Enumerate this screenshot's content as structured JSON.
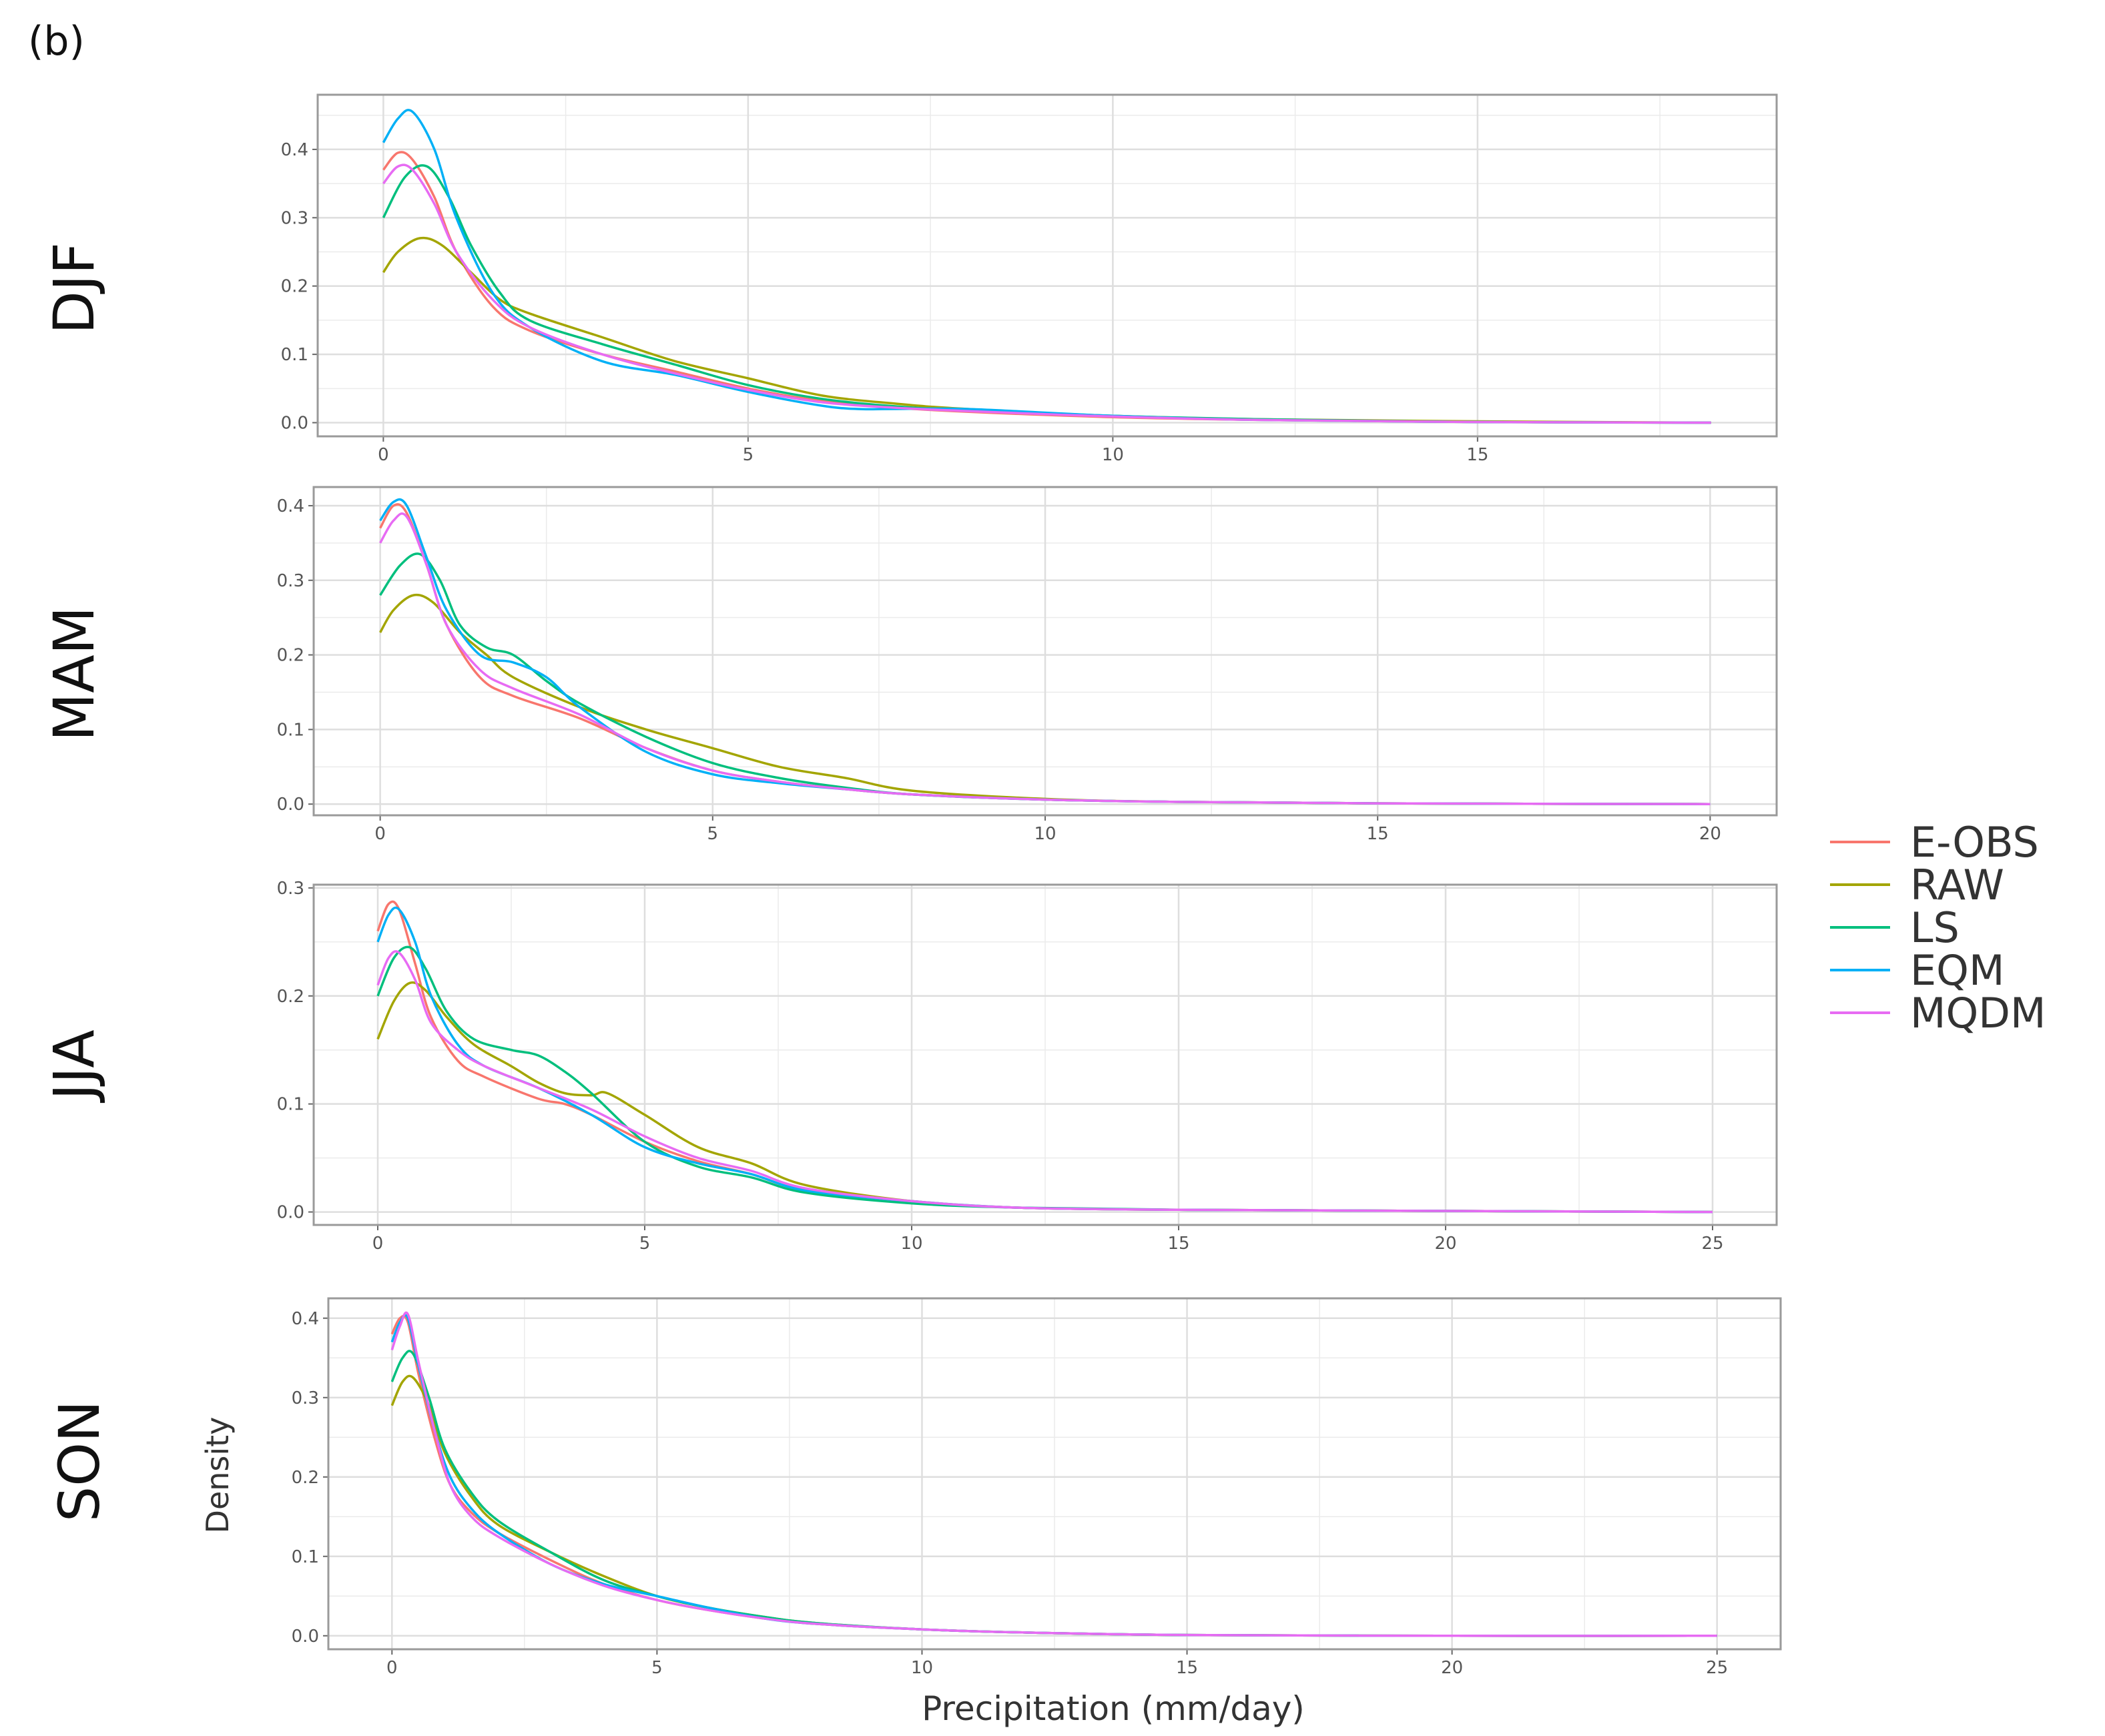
{
  "figure_label": "(b)",
  "colors": {
    "E-OBS": "#F8766D",
    "RAW": "#A3A500",
    "LS": "#00BF7D",
    "EQM": "#00B0F6",
    "MQDM": "#E76BF3",
    "grid": "#ebebeb",
    "frame": "#9a9a9a"
  },
  "legend": {
    "placement": "right",
    "items": [
      "E-OBS",
      "RAW",
      "LS",
      "EQM",
      "MQDM"
    ]
  },
  "chart_data": [
    {
      "type": "line",
      "panel": "DJF",
      "xlabel": "",
      "ylabel": "",
      "xlim": [
        -0.9,
        19.1
      ],
      "ylim": [
        -0.02,
        0.48
      ],
      "xticks": [
        0,
        5,
        10,
        15
      ],
      "yticks": [
        0.0,
        0.1,
        0.2,
        0.3,
        0.4
      ],
      "grid": true,
      "series": [
        {
          "name": "E-OBS",
          "x": [
            0,
            0.2,
            0.4,
            0.7,
            1,
            1.5,
            2,
            3,
            4,
            5,
            6,
            7,
            8,
            10,
            12,
            15,
            18.2
          ],
          "y": [
            0.37,
            0.395,
            0.385,
            0.33,
            0.25,
            0.17,
            0.135,
            0.1,
            0.075,
            0.05,
            0.032,
            0.022,
            0.016,
            0.008,
            0.004,
            0.001,
            0.0
          ]
        },
        {
          "name": "RAW",
          "x": [
            0,
            0.2,
            0.5,
            0.8,
            1.2,
            1.6,
            2,
            3,
            4,
            5,
            6,
            7,
            8,
            10,
            12,
            15,
            18.2
          ],
          "y": [
            0.22,
            0.25,
            0.27,
            0.26,
            0.22,
            0.18,
            0.16,
            0.125,
            0.09,
            0.065,
            0.04,
            0.028,
            0.02,
            0.01,
            0.005,
            0.002,
            0.0
          ]
        },
        {
          "name": "LS",
          "x": [
            0,
            0.3,
            0.6,
            0.9,
            1.2,
            1.6,
            2,
            3,
            4,
            5,
            6,
            7,
            8,
            10,
            12,
            15,
            18.2
          ],
          "y": [
            0.3,
            0.36,
            0.375,
            0.33,
            0.26,
            0.19,
            0.15,
            0.115,
            0.085,
            0.055,
            0.035,
            0.024,
            0.018,
            0.01,
            0.005,
            0.001,
            0.0
          ]
        },
        {
          "name": "EQM",
          "x": [
            0,
            0.2,
            0.4,
            0.7,
            1,
            1.5,
            2,
            3,
            4,
            5,
            6,
            6.5,
            7,
            8,
            10,
            12,
            15,
            18.2
          ],
          "y": [
            0.41,
            0.445,
            0.455,
            0.4,
            0.3,
            0.19,
            0.14,
            0.09,
            0.07,
            0.045,
            0.025,
            0.02,
            0.02,
            0.02,
            0.01,
            0.004,
            0.001,
            0.0
          ]
        },
        {
          "name": "MQDM",
          "x": [
            0,
            0.2,
            0.4,
            0.7,
            1,
            1.5,
            2,
            3,
            4,
            5,
            6,
            7,
            8,
            10,
            12,
            15,
            18.2
          ],
          "y": [
            0.35,
            0.375,
            0.37,
            0.32,
            0.25,
            0.18,
            0.14,
            0.1,
            0.072,
            0.048,
            0.03,
            0.022,
            0.017,
            0.009,
            0.004,
            0.001,
            0.0
          ]
        }
      ]
    },
    {
      "type": "line",
      "panel": "MAM",
      "xlabel": "",
      "ylabel": "",
      "xlim": [
        -1,
        21
      ],
      "ylim": [
        -0.015,
        0.425
      ],
      "xticks": [
        0,
        5,
        10,
        15,
        20
      ],
      "yticks": [
        0.0,
        0.1,
        0.2,
        0.3,
        0.4
      ],
      "grid": true,
      "series": [
        {
          "name": "E-OBS",
          "x": [
            0,
            0.2,
            0.4,
            0.7,
            1,
            1.5,
            2,
            3,
            4,
            5,
            6,
            7,
            8,
            10,
            12,
            15,
            20
          ],
          "y": [
            0.37,
            0.4,
            0.39,
            0.32,
            0.24,
            0.17,
            0.145,
            0.115,
            0.075,
            0.045,
            0.03,
            0.02,
            0.013,
            0.006,
            0.003,
            0.001,
            0.0
          ]
        },
        {
          "name": "RAW",
          "x": [
            0,
            0.2,
            0.5,
            0.8,
            1.2,
            1.6,
            2,
            3,
            4,
            5,
            6,
            7,
            8,
            10,
            12,
            15,
            20
          ],
          "y": [
            0.23,
            0.26,
            0.28,
            0.27,
            0.23,
            0.2,
            0.17,
            0.13,
            0.1,
            0.075,
            0.05,
            0.035,
            0.018,
            0.007,
            0.003,
            0.001,
            0.0
          ]
        },
        {
          "name": "LS",
          "x": [
            0,
            0.3,
            0.6,
            0.9,
            1.2,
            1.6,
            2,
            2.5,
            3,
            4,
            5,
            6,
            7,
            8,
            10,
            12,
            15,
            20
          ],
          "y": [
            0.28,
            0.32,
            0.335,
            0.3,
            0.24,
            0.21,
            0.2,
            0.165,
            0.135,
            0.09,
            0.055,
            0.035,
            0.022,
            0.013,
            0.006,
            0.003,
            0.001,
            0.0
          ]
        },
        {
          "name": "EQM",
          "x": [
            0,
            0.2,
            0.4,
            0.7,
            1,
            1.5,
            2,
            2.5,
            3,
            4,
            5,
            6,
            7,
            8,
            10,
            12,
            15,
            20
          ],
          "y": [
            0.38,
            0.405,
            0.4,
            0.33,
            0.26,
            0.2,
            0.19,
            0.17,
            0.13,
            0.07,
            0.04,
            0.028,
            0.02,
            0.013,
            0.006,
            0.003,
            0.001,
            0.0
          ]
        },
        {
          "name": "MQDM",
          "x": [
            0,
            0.2,
            0.4,
            0.7,
            1,
            1.5,
            2,
            3,
            4,
            5,
            6,
            7,
            8,
            10,
            12,
            15,
            20
          ],
          "y": [
            0.35,
            0.38,
            0.385,
            0.32,
            0.24,
            0.18,
            0.155,
            0.12,
            0.075,
            0.045,
            0.03,
            0.02,
            0.013,
            0.006,
            0.003,
            0.001,
            0.0
          ]
        }
      ]
    },
    {
      "type": "line",
      "panel": "JJA",
      "xlabel": "",
      "ylabel": "",
      "xlim": [
        -1.2,
        26.2
      ],
      "ylim": [
        -0.012,
        0.303
      ],
      "xticks": [
        0,
        5,
        10,
        15,
        20,
        25
      ],
      "yticks": [
        0.0,
        0.1,
        0.2,
        0.3
      ],
      "grid": true,
      "series": [
        {
          "name": "E-OBS",
          "x": [
            0,
            0.2,
            0.4,
            0.7,
            1,
            1.5,
            2,
            3,
            3.5,
            4,
            5,
            6,
            7,
            8,
            10,
            12,
            15,
            20,
            25
          ],
          "y": [
            0.26,
            0.285,
            0.28,
            0.23,
            0.18,
            0.14,
            0.125,
            0.105,
            0.1,
            0.09,
            0.065,
            0.047,
            0.035,
            0.02,
            0.01,
            0.004,
            0.002,
            0.001,
            0.0
          ]
        },
        {
          "name": "RAW",
          "x": [
            0,
            0.3,
            0.6,
            0.9,
            1.3,
            1.8,
            2.5,
            3,
            3.5,
            4,
            4.3,
            5,
            6,
            7,
            8,
            10,
            12,
            15,
            20,
            25
          ],
          "y": [
            0.16,
            0.195,
            0.212,
            0.205,
            0.18,
            0.155,
            0.135,
            0.12,
            0.11,
            0.108,
            0.11,
            0.09,
            0.06,
            0.045,
            0.025,
            0.01,
            0.004,
            0.002,
            0.001,
            0.0
          ]
        },
        {
          "name": "LS",
          "x": [
            0,
            0.3,
            0.6,
            0.9,
            1.3,
            1.8,
            2.5,
            3,
            3.5,
            4,
            5,
            6,
            7,
            8,
            10,
            12,
            15,
            20,
            25
          ],
          "y": [
            0.2,
            0.235,
            0.245,
            0.225,
            0.185,
            0.16,
            0.15,
            0.145,
            0.13,
            0.11,
            0.065,
            0.042,
            0.032,
            0.018,
            0.008,
            0.004,
            0.002,
            0.001,
            0.0
          ]
        },
        {
          "name": "EQM",
          "x": [
            0,
            0.2,
            0.4,
            0.7,
            1,
            1.5,
            2,
            3,
            4,
            5,
            6,
            7,
            8,
            10,
            12,
            15,
            20,
            25
          ],
          "y": [
            0.25,
            0.275,
            0.28,
            0.25,
            0.2,
            0.155,
            0.135,
            0.115,
            0.09,
            0.06,
            0.045,
            0.035,
            0.02,
            0.01,
            0.004,
            0.002,
            0.001,
            0.0
          ]
        },
        {
          "name": "MQDM",
          "x": [
            0,
            0.2,
            0.4,
            0.7,
            1,
            1.5,
            2,
            3,
            4,
            5,
            6,
            7,
            8,
            10,
            12,
            15,
            20,
            25
          ],
          "y": [
            0.21,
            0.235,
            0.24,
            0.215,
            0.175,
            0.15,
            0.135,
            0.115,
            0.095,
            0.07,
            0.05,
            0.038,
            0.022,
            0.01,
            0.004,
            0.002,
            0.001,
            0.0
          ]
        }
      ]
    },
    {
      "type": "line",
      "panel": "SON",
      "xlabel": "Precipitation (mm/day)",
      "ylabel": "Density",
      "xlim": [
        -1.2,
        26.2
      ],
      "ylim": [
        -0.017,
        0.425
      ],
      "xticks": [
        0,
        5,
        10,
        15,
        20,
        25
      ],
      "yticks": [
        0.0,
        0.1,
        0.2,
        0.3,
        0.4
      ],
      "grid": true,
      "series": [
        {
          "name": "E-OBS",
          "x": [
            0,
            0.15,
            0.3,
            0.5,
            0.8,
            1.1,
            1.5,
            2,
            3,
            4,
            5,
            6,
            7,
            8,
            10,
            12,
            15,
            20,
            25
          ],
          "y": [
            0.38,
            0.4,
            0.395,
            0.33,
            0.25,
            0.19,
            0.155,
            0.13,
            0.095,
            0.065,
            0.045,
            0.032,
            0.022,
            0.015,
            0.008,
            0.004,
            0.001,
            0.0,
            0.0
          ]
        },
        {
          "name": "RAW",
          "x": [
            0,
            0.2,
            0.4,
            0.7,
            1,
            1.5,
            2,
            3,
            4,
            5,
            6,
            7,
            8,
            10,
            12,
            15,
            20,
            25
          ],
          "y": [
            0.29,
            0.32,
            0.325,
            0.29,
            0.23,
            0.175,
            0.14,
            0.105,
            0.075,
            0.05,
            0.035,
            0.024,
            0.016,
            0.008,
            0.004,
            0.001,
            0.0,
            0.0
          ]
        },
        {
          "name": "LS",
          "x": [
            0,
            0.2,
            0.4,
            0.7,
            1,
            1.5,
            2,
            3,
            4,
            5,
            6,
            7,
            8,
            10,
            12,
            15,
            20,
            25
          ],
          "y": [
            0.32,
            0.35,
            0.355,
            0.3,
            0.235,
            0.18,
            0.145,
            0.105,
            0.07,
            0.05,
            0.035,
            0.024,
            0.016,
            0.008,
            0.004,
            0.001,
            0.0,
            0.0
          ]
        },
        {
          "name": "EQM",
          "x": [
            0,
            0.15,
            0.3,
            0.5,
            0.8,
            1.1,
            1.5,
            2,
            3,
            4,
            5,
            6,
            7,
            8,
            10,
            12,
            15,
            20,
            25
          ],
          "y": [
            0.37,
            0.395,
            0.4,
            0.34,
            0.26,
            0.2,
            0.16,
            0.13,
            0.09,
            0.065,
            0.05,
            0.035,
            0.022,
            0.015,
            0.008,
            0.004,
            0.001,
            0.0,
            0.0
          ]
        },
        {
          "name": "MQDM",
          "x": [
            0,
            0.15,
            0.3,
            0.5,
            0.8,
            1.1,
            1.5,
            2,
            3,
            4,
            5,
            6,
            7,
            8,
            10,
            12,
            15,
            20,
            25
          ],
          "y": [
            0.36,
            0.39,
            0.405,
            0.345,
            0.26,
            0.19,
            0.15,
            0.125,
            0.09,
            0.063,
            0.045,
            0.032,
            0.022,
            0.015,
            0.008,
            0.004,
            0.001,
            0.0,
            0.0
          ]
        }
      ]
    }
  ]
}
